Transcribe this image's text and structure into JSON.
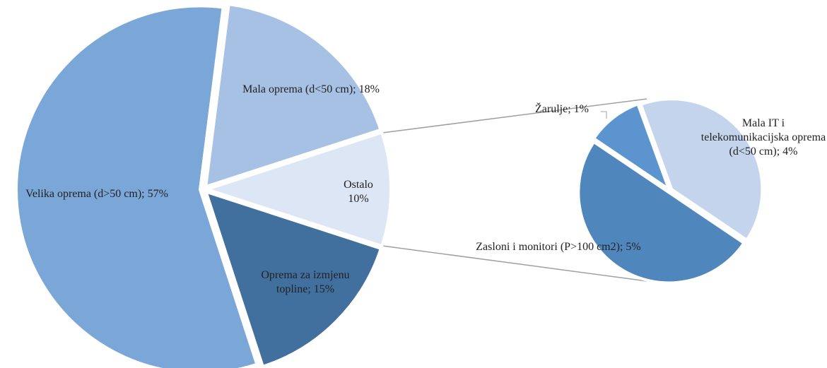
{
  "chart_data": {
    "type": "pie-of-pie",
    "categories": [
      "Velika oprema (d>50 cm);",
      "Mala oprema (d<50 cm);",
      "Ostalo",
      "Oprema za izmjenu topline;"
    ],
    "values": [
      57,
      18,
      10,
      15
    ],
    "value_labels": [
      "57%",
      "18%",
      "10%",
      "15%"
    ],
    "colors": [
      "#7aa7d8",
      "#a7c1e4",
      "#dce6f4",
      "#41709f"
    ],
    "secondary": {
      "categories": [
        "Žarulje;",
        "Mala IT i telekomunikacijska oprema (d<50 cm);",
        "Zasloni i monitori (P>100 cm2);"
      ],
      "values": [
        1,
        4,
        5
      ],
      "value_labels": [
        "1%",
        "4%",
        "5%"
      ],
      "colors": [
        "#5b94cf",
        "#c3d4ec",
        "#4f87bd"
      ]
    }
  }
}
